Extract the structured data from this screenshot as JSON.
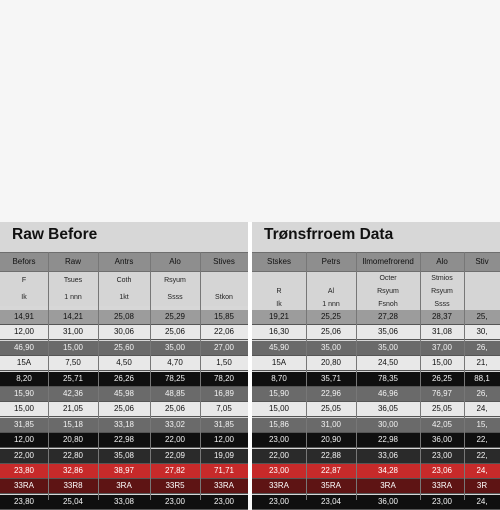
{
  "left": {
    "title": "Raw Before",
    "headers": [
      "Befors",
      "Raw",
      "Antrs",
      "Alo",
      "Stives"
    ],
    "sub_rows": [
      [
        "F",
        "Tsues",
        "Coth",
        "Rsyum",
        ""
      ],
      [
        "Ik",
        "1 nnn",
        "1kt",
        "Ssss",
        "Stkon"
      ]
    ],
    "rows": [
      {
        "tone": "mid",
        "cells": [
          "14,91",
          "14,21",
          "25,08",
          "25,29",
          "15,85"
        ]
      },
      {
        "tone": "light",
        "cells": [
          "12,00",
          "31,00",
          "30,06",
          "25,06",
          "22,06"
        ]
      },
      {
        "tone": "gray",
        "cells": [
          "46,90",
          "15,00",
          "25,60",
          "35,00",
          "27,00"
        ]
      },
      {
        "tone": "light",
        "cells": [
          "15A",
          "7,50",
          "4,50",
          "4,70",
          "1,50"
        ]
      },
      {
        "tone": "black",
        "cells": [
          "8,20",
          "25,71",
          "26,26",
          "78,25",
          "78,20"
        ]
      },
      {
        "tone": "gray",
        "cells": [
          "15,90",
          "42,36",
          "45,98",
          "48,85",
          "16,89"
        ]
      },
      {
        "tone": "light",
        "cells": [
          "15,00",
          "21,05",
          "25,06",
          "25,06",
          "7,05"
        ]
      },
      {
        "tone": "gray",
        "cells": [
          "31,85",
          "15,18",
          "33,18",
          "33,02",
          "31,85"
        ]
      },
      {
        "tone": "black",
        "cells": [
          "12,00",
          "20,80",
          "22,98",
          "22,00",
          "12,00"
        ]
      },
      {
        "tone": "dark",
        "cells": [
          "22,00",
          "22,80",
          "35,08",
          "22,09",
          "19,09"
        ]
      },
      {
        "tone": "red",
        "cells": [
          "23,80",
          "32,86",
          "38,97",
          "27,82",
          "71,71"
        ]
      },
      {
        "tone": "darkred",
        "cells": [
          "33RA",
          "33R8",
          "3RA",
          "33R5",
          "33RA"
        ]
      },
      {
        "tone": "black",
        "cells": [
          "23,80",
          "25,04",
          "33,08",
          "23,00",
          "23,00"
        ]
      }
    ]
  },
  "right": {
    "title": "Trønsfrroem Data",
    "headers": [
      "Stskes",
      "Petrs",
      "Ilmomefrorend",
      "Alo",
      "Stiv"
    ],
    "sub_rows": [
      [
        "",
        "",
        "Octer",
        "Stmios",
        ""
      ],
      [
        "R",
        "Al",
        "Rsyum",
        "Rsyum",
        ""
      ],
      [
        "Ik",
        "1 nnn",
        "Fsnoh",
        "Ssss",
        ""
      ]
    ],
    "rows": [
      {
        "tone": "mid",
        "cells": [
          "19,21",
          "25,25",
          "27,28",
          "28,37",
          "25,"
        ]
      },
      {
        "tone": "light",
        "cells": [
          "16,30",
          "25,06",
          "35,06",
          "31,08",
          "30,"
        ]
      },
      {
        "tone": "gray",
        "cells": [
          "45,90",
          "35,00",
          "35,00",
          "37,00",
          "26,"
        ]
      },
      {
        "tone": "light",
        "cells": [
          "15A",
          "20,80",
          "24,50",
          "15,00",
          "21,"
        ]
      },
      {
        "tone": "black",
        "cells": [
          "8,70",
          "35,71",
          "78,35",
          "26,25",
          "88,1"
        ]
      },
      {
        "tone": "gray",
        "cells": [
          "15,90",
          "22,96",
          "46,96",
          "76,97",
          "26,"
        ]
      },
      {
        "tone": "light",
        "cells": [
          "15,00",
          "25,05",
          "36,05",
          "25,05",
          "24,"
        ]
      },
      {
        "tone": "gray",
        "cells": [
          "15,86",
          "31,00",
          "30,00",
          "42,05",
          "15,"
        ]
      },
      {
        "tone": "black",
        "cells": [
          "23,00",
          "20,90",
          "22,98",
          "36,00",
          "22,"
        ]
      },
      {
        "tone": "dark",
        "cells": [
          "22,00",
          "22,88",
          "33,06",
          "23,00",
          "22,"
        ]
      },
      {
        "tone": "red",
        "cells": [
          "23,00",
          "22,87",
          "34,28",
          "23,06",
          "24,"
        ]
      },
      {
        "tone": "darkred",
        "cells": [
          "33RA",
          "35RA",
          "3RA",
          "33RA",
          "3R"
        ]
      },
      {
        "tone": "black",
        "cells": [
          "23,00",
          "23,04",
          "36,00",
          "23,00",
          "24,"
        ]
      }
    ]
  }
}
